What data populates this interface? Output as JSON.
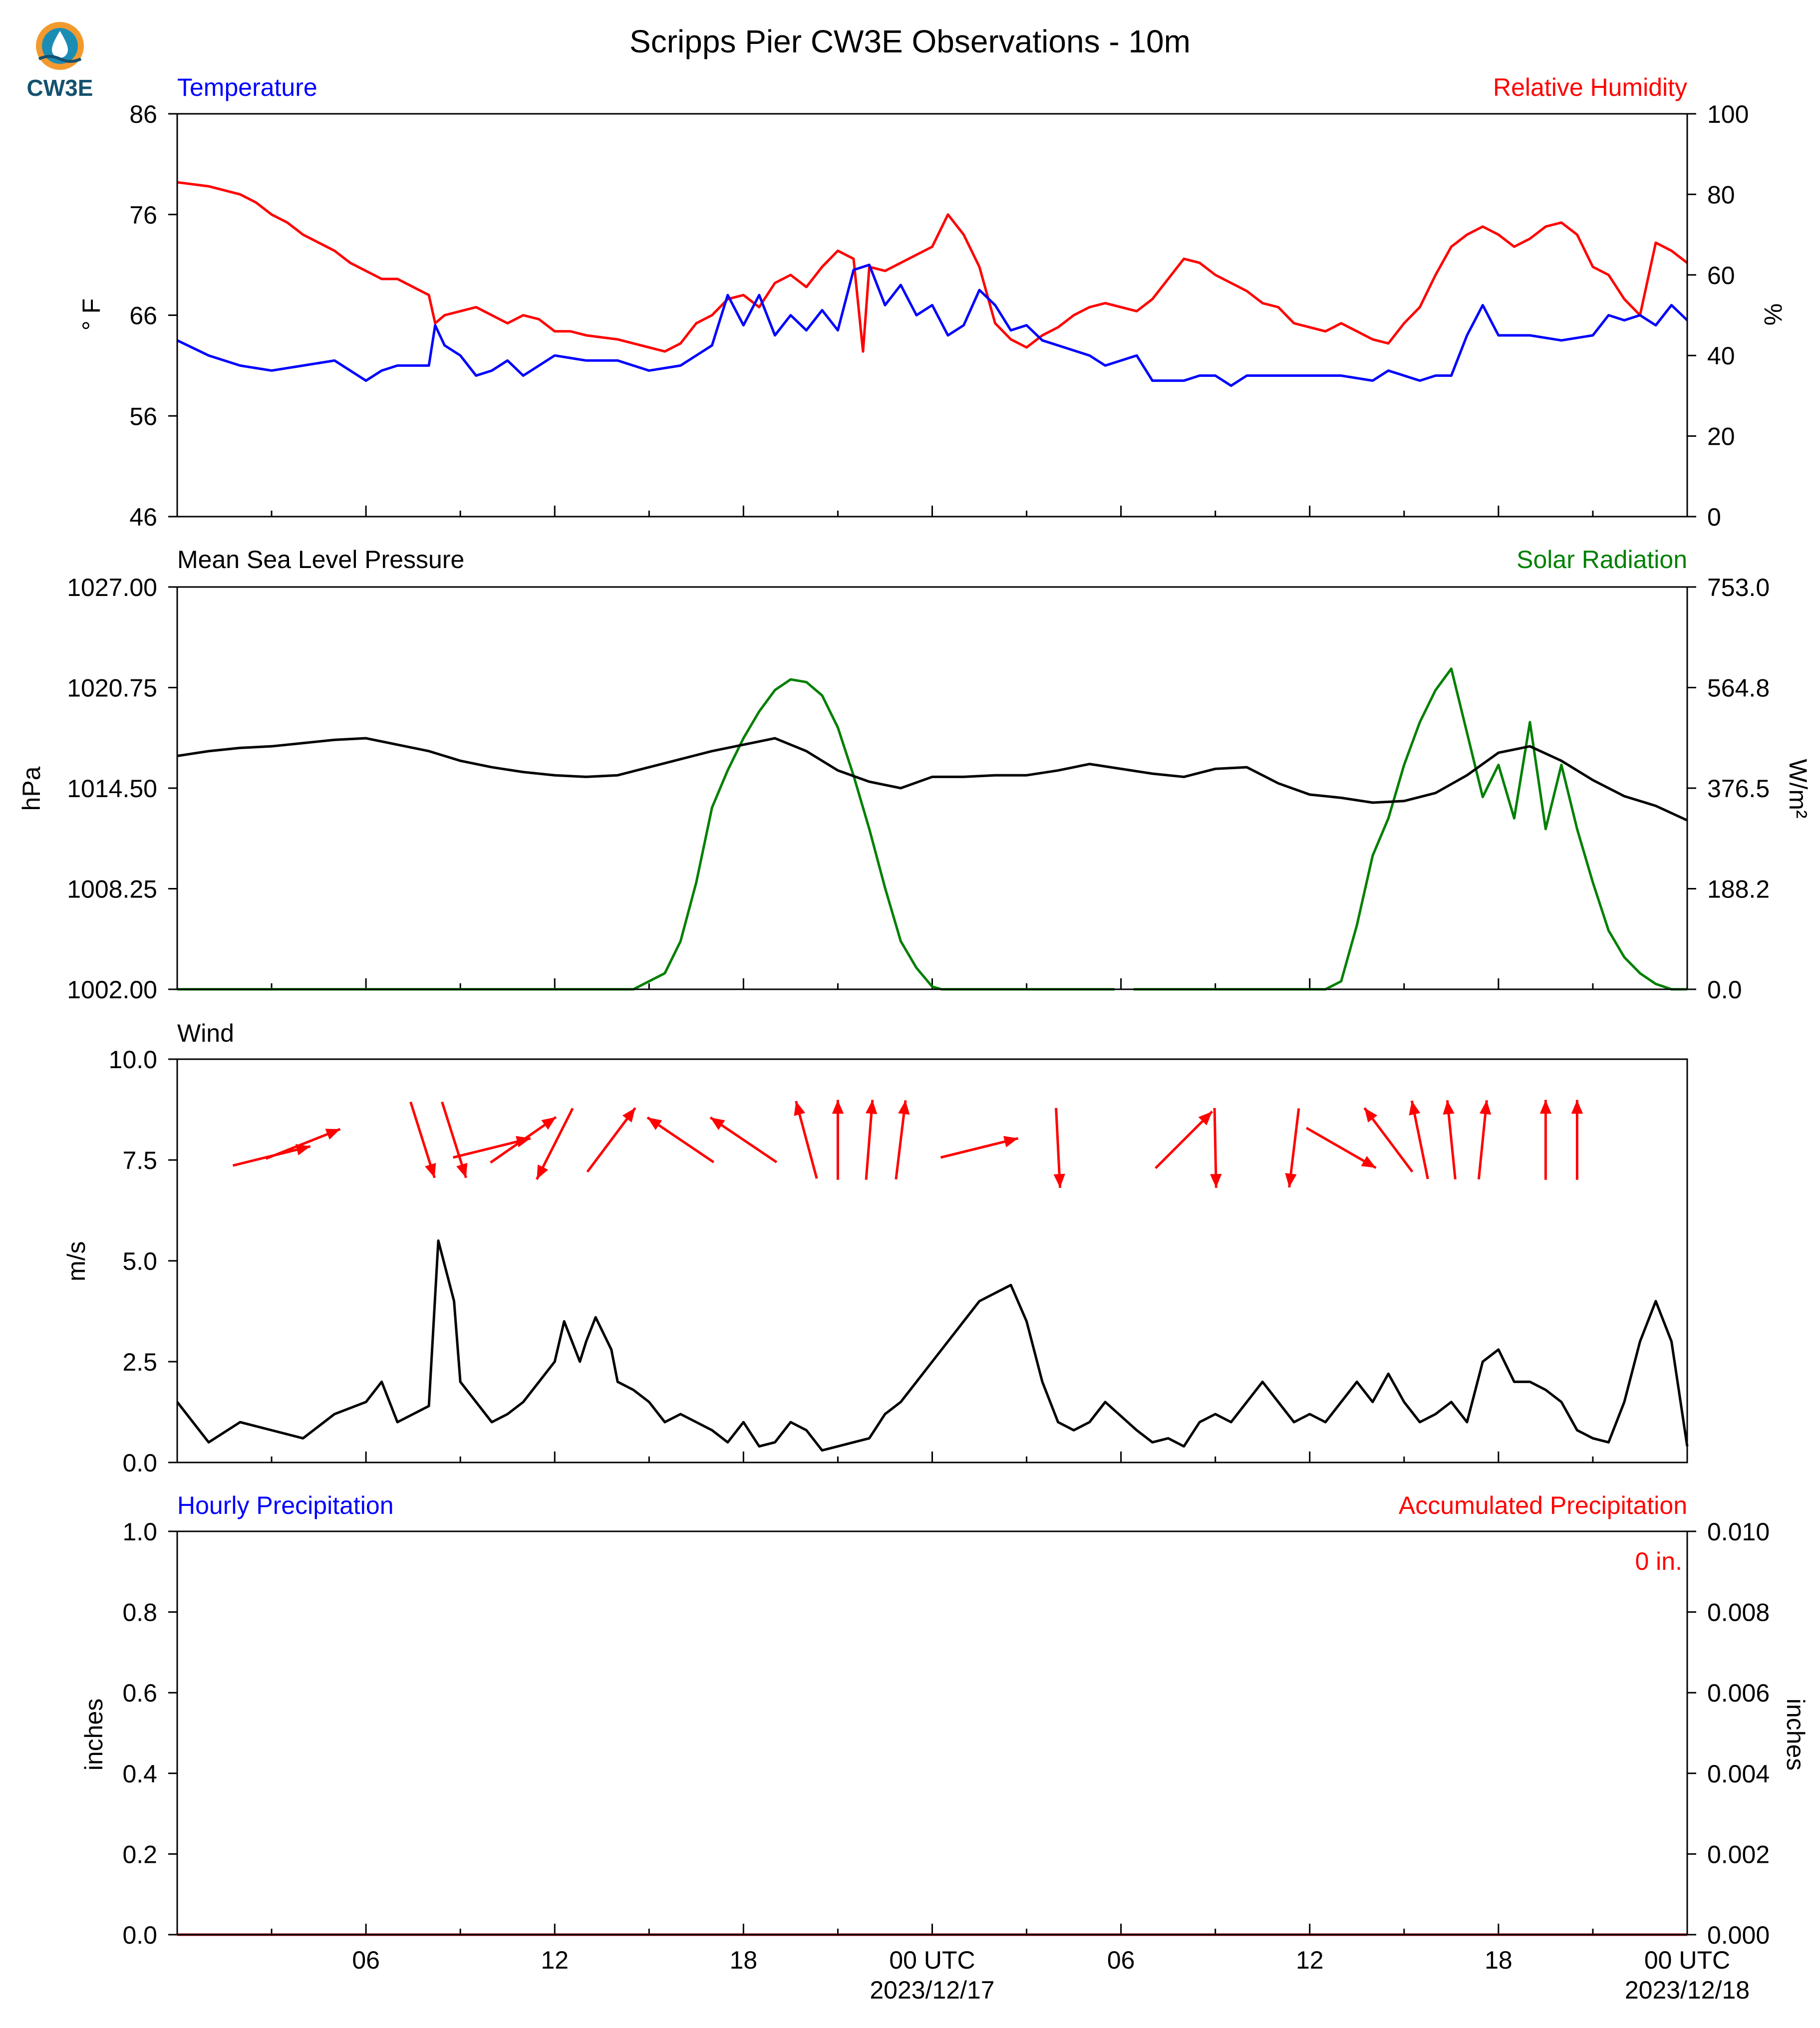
{
  "title": "Scripps Pier CW3E Observations - 10m",
  "logo": {
    "text": "CW3E",
    "icon": "cw3e-drop-logo",
    "colors": {
      "orange": "#F29A2E",
      "teal": "#1B8DB5",
      "navy": "#15516E"
    }
  },
  "colors": {
    "blue": "#0000FF",
    "red": "#FF0000",
    "green": "#008000",
    "black": "#000000"
  },
  "x_axis": {
    "range_hours": [
      -1,
      47
    ],
    "tick_labels": [
      {
        "hour": 5,
        "label": "06"
      },
      {
        "hour": 11,
        "label": "12"
      },
      {
        "hour": 17,
        "label": "18"
      },
      {
        "hour": 23,
        "label": "00 UTC",
        "sub": "2023/12/17"
      },
      {
        "hour": 29,
        "label": "06"
      },
      {
        "hour": 35,
        "label": "12"
      },
      {
        "hour": 41,
        "label": "18"
      },
      {
        "hour": 47,
        "label": "00 UTC",
        "sub": "2023/12/18"
      }
    ]
  },
  "panels": {
    "temp_rh": {
      "left_label": "Temperature",
      "right_label": "Relative Humidity",
      "left_unit": "° F",
      "right_unit": "%",
      "left_ticks": [
        "86",
        "76",
        "66",
        "56",
        "46"
      ],
      "right_ticks": [
        "100",
        "80",
        "60",
        "40",
        "20",
        "0"
      ]
    },
    "pressure_solar": {
      "left_label": "Mean Sea Level Pressure",
      "right_label": "Solar Radiation",
      "left_unit": "hPa",
      "right_unit": "W/m²",
      "left_ticks": [
        "1027.00",
        "1020.75",
        "1014.50",
        "1008.25",
        "1002.00"
      ],
      "right_ticks": [
        "753.0",
        "564.8",
        "376.5",
        "188.2",
        "0.0"
      ]
    },
    "wind": {
      "left_label": "Wind",
      "left_unit": "m/s",
      "left_ticks": [
        "10.0",
        "7.5",
        "5.0",
        "2.5",
        "0.0"
      ]
    },
    "precip": {
      "left_label": "Hourly Precipitation",
      "right_label": "Accumulated Precipitation",
      "left_unit": "inches",
      "right_unit": "inches",
      "left_ticks": [
        "1.0",
        "0.8",
        "0.6",
        "0.4",
        "0.2",
        "0.0"
      ],
      "right_ticks": [
        "0.010",
        "0.008",
        "0.006",
        "0.004",
        "0.002",
        "0.000"
      ],
      "accum_text": "0 in."
    }
  },
  "chart_data": [
    {
      "type": "line",
      "name": "temp_rh",
      "x_unit": "hours since 2023-12-16 00 UTC",
      "ylim_left": [
        46,
        86
      ],
      "ylim_right": [
        0,
        100
      ],
      "series": [
        {
          "name": "Temperature",
          "axis": "left",
          "color": "#0000FF",
          "x": [
            -1,
            0,
            1,
            2,
            3,
            4,
            5,
            5.5,
            6,
            7,
            7.2,
            7.5,
            8,
            8.5,
            9,
            9.5,
            10,
            10.5,
            11,
            12,
            13,
            14,
            15,
            15.5,
            16,
            16.5,
            17,
            17.5,
            18,
            18.5,
            19,
            19.5,
            20,
            20.5,
            21,
            21.5,
            22,
            22.5,
            23,
            23.5,
            24,
            24.5,
            25,
            25.5,
            26,
            26.5,
            27,
            28,
            28.5,
            29,
            29.5,
            30,
            31,
            31.5,
            32,
            32.5,
            33,
            34,
            35,
            36,
            37,
            37.5,
            38,
            38.5,
            39,
            39.5,
            40,
            40.5,
            41,
            42,
            43,
            44,
            44.5,
            45,
            45.5,
            46,
            46.5,
            47
          ],
          "y": [
            63.5,
            62,
            61,
            60.5,
            61,
            61.5,
            59.5,
            60.5,
            61,
            61,
            65,
            63,
            62,
            60,
            60.5,
            61.5,
            60,
            61,
            62,
            61.5,
            61.5,
            60.5,
            61,
            62,
            63,
            68,
            65,
            68,
            64,
            66,
            64.5,
            66.5,
            64.5,
            70.5,
            71,
            67,
            69,
            66,
            67,
            64,
            65,
            68.5,
            67,
            64.5,
            65,
            63.5,
            63,
            62,
            61,
            61,
            62,
            59.5,
            59.5,
            60,
            60,
            59,
            60,
            60,
            60,
            60,
            59.5,
            60.5,
            60,
            59.5,
            60,
            60,
            64,
            67,
            64,
            64,
            63.5,
            64,
            66,
            65.5,
            66,
            65,
            67,
            65.5
          ]
        },
        {
          "name": "Relative Humidity",
          "axis": "right",
          "color": "#FF0000",
          "x": [
            -1,
            0,
            0.5,
            1,
            1.5,
            2,
            2.5,
            3,
            3.5,
            4,
            4.5,
            5,
            5.5,
            6,
            6.5,
            7,
            7.2,
            7.5,
            8,
            8.5,
            9,
            9.5,
            10,
            10.5,
            11,
            11.5,
            12,
            13,
            14,
            14.5,
            15,
            15.5,
            16,
            16.5,
            17,
            17.5,
            18,
            18.5,
            19,
            19.5,
            20,
            20.5,
            20.8,
            21,
            21.5,
            22,
            22.5,
            23,
            23.5,
            24,
            24.5,
            25,
            25.5,
            26,
            26.5,
            27,
            27.5,
            28,
            28.5,
            29,
            29.5,
            30,
            31,
            31.5,
            32,
            32.5,
            33,
            33.5,
            34,
            34.5,
            35,
            35.5,
            36,
            36.5,
            37,
            37.5,
            38,
            38.5,
            39,
            39.5,
            40,
            40.5,
            41,
            41.5,
            42,
            42.5,
            43,
            43.5,
            44,
            44.5,
            45,
            45.5,
            46,
            46.5,
            47
          ],
          "y": [
            83,
            82,
            81,
            80,
            78,
            75,
            73,
            70,
            68,
            66,
            63,
            61,
            59,
            59,
            57,
            55,
            48,
            50,
            51,
            52,
            50,
            48,
            50,
            49,
            46,
            46,
            45,
            44,
            42,
            41,
            43,
            48,
            50,
            54,
            55,
            52,
            58,
            60,
            57,
            62,
            66,
            64,
            41,
            62,
            61,
            63,
            65,
            67,
            75,
            70,
            62,
            48,
            44,
            42,
            45,
            47,
            50,
            52,
            53,
            49,
            51,
            54,
            64,
            63,
            60,
            58,
            56,
            53,
            52,
            48,
            47,
            46,
            48,
            46,
            44,
            43,
            48,
            52,
            60,
            67,
            70,
            72,
            70,
            67,
            69,
            72,
            73,
            70,
            62,
            60,
            54,
            50,
            68,
            66,
            63
          ]
        }
      ],
      "gap_hours": [
        28.8,
        29.4
      ]
    },
    {
      "type": "line",
      "name": "pressure_solar",
      "x_unit": "hours since 2023-12-16 00 UTC",
      "ylim_left": [
        1002.0,
        1027.0
      ],
      "ylim_right": [
        0.0,
        753.0
      ],
      "series": [
        {
          "name": "Mean Sea Level Pressure",
          "axis": "left",
          "color": "#000000",
          "x": [
            -1,
            0,
            1,
            2,
            3,
            4,
            5,
            6,
            7,
            8,
            9,
            10,
            11,
            12,
            13,
            14,
            15,
            16,
            17,
            18,
            19,
            20,
            21,
            22,
            23,
            24,
            25,
            26,
            27,
            28,
            29,
            30,
            31,
            32,
            33,
            34,
            35,
            36,
            37,
            38,
            39,
            40,
            41,
            42,
            43,
            44,
            45,
            46,
            47
          ],
          "y": [
            1016.5,
            1016.8,
            1017.0,
            1017.1,
            1017.3,
            1017.5,
            1017.6,
            1017.2,
            1016.8,
            1016.2,
            1015.8,
            1015.5,
            1015.3,
            1015.2,
            1015.3,
            1015.8,
            1016.3,
            1016.8,
            1017.2,
            1017.6,
            1016.8,
            1015.6,
            1014.9,
            1014.5,
            1015.2,
            1015.2,
            1015.3,
            1015.3,
            1015.6,
            1016.0,
            1015.6,
            1015.4,
            1015.2,
            1015.7,
            1015.8,
            1014.8,
            1014.1,
            1013.9,
            1013.6,
            1013.7,
            1014.2,
            1015.3,
            1016.7,
            1017.1,
            1016.2,
            1015.0,
            1014.0,
            1013.4,
            1012.5
          ]
        },
        {
          "name": "Solar Radiation",
          "axis": "right",
          "color": "#008000",
          "x": [
            -1,
            12,
            13.5,
            14.5,
            15,
            15.5,
            16,
            16.5,
            17,
            17.5,
            18,
            18.5,
            19,
            19.5,
            20,
            20.5,
            21,
            21.5,
            22,
            22.5,
            23,
            23.3,
            23.8,
            25,
            28,
            28.8,
            29.4,
            34,
            35.5,
            36,
            36.5,
            37,
            37.5,
            38,
            38.5,
            39,
            39.5,
            40,
            40.5,
            41,
            41.5,
            42,
            42.5,
            43,
            43.5,
            44,
            44.5,
            45,
            45.5,
            46,
            46.5,
            47
          ],
          "y": [
            0,
            0,
            0,
            30,
            90,
            200,
            340,
            410,
            470,
            520,
            560,
            580,
            575,
            550,
            490,
            400,
            300,
            190,
            90,
            40,
            5,
            0,
            0,
            0,
            0,
            0,
            0,
            0,
            0,
            15,
            120,
            250,
            320,
            420,
            500,
            560,
            600,
            480,
            360,
            420,
            320,
            500,
            300,
            420,
            300,
            200,
            110,
            60,
            30,
            10,
            0,
            0
          ]
        }
      ],
      "gap_hours": [
        28.8,
        29.4
      ]
    },
    {
      "type": "line",
      "name": "wind",
      "x_unit": "hours since 2023-12-16 00 UTC",
      "ylim": [
        0.0,
        10.0
      ],
      "series": [
        {
          "name": "Wind",
          "color": "#000000",
          "x": [
            -1,
            0,
            1,
            2,
            3,
            4,
            5,
            5.5,
            6,
            6.5,
            7,
            7.3,
            7.8,
            8,
            8.5,
            9,
            9.5,
            10,
            10.5,
            11,
            11.3,
            11.8,
            12,
            12.3,
            12.8,
            13,
            13.5,
            14,
            14.5,
            15,
            15.5,
            16,
            16.5,
            17,
            17.5,
            18,
            18.5,
            19,
            19.5,
            20,
            20.5,
            21,
            21.5,
            22,
            22.5,
            23,
            23.5,
            24,
            24.5,
            25,
            25.5,
            26,
            26.5,
            27,
            27.5,
            28,
            28.5,
            29,
            29.5,
            30,
            30.5,
            31,
            31.5,
            32,
            32.5,
            33,
            33.5,
            34,
            34.5,
            35,
            35.5,
            36,
            36.5,
            37,
            37.5,
            38,
            38.5,
            39,
            39.5,
            40,
            40.5,
            41,
            41.5,
            42,
            42.5,
            43,
            43.5,
            44,
            44.5,
            45,
            45.5,
            46,
            46.5,
            47
          ],
          "y": [
            1.5,
            0.5,
            1.0,
            0.8,
            0.6,
            1.2,
            1.5,
            2.0,
            1.0,
            1.2,
            1.4,
            5.5,
            4.0,
            2.0,
            1.5,
            1.0,
            1.2,
            1.5,
            2.0,
            2.5,
            3.5,
            2.5,
            3.0,
            3.6,
            2.8,
            2.0,
            1.8,
            1.5,
            1.0,
            1.2,
            1.0,
            0.8,
            0.5,
            1.0,
            0.4,
            0.5,
            1.0,
            0.8,
            0.3,
            0.4,
            0.5,
            0.6,
            1.2,
            1.5,
            2.0,
            2.5,
            3.0,
            3.5,
            4.0,
            4.2,
            4.4,
            3.5,
            2.0,
            1.0,
            0.8,
            1.0,
            1.5,
            1.0,
            0.8,
            0.5,
            0.6,
            0.4,
            1.0,
            1.2,
            1.0,
            1.5,
            2.0,
            1.5,
            1.0,
            1.2,
            1.0,
            1.5,
            2.0,
            1.5,
            2.2,
            1.5,
            1.0,
            1.2,
            1.5,
            1.0,
            2.5,
            2.8,
            2.0,
            2.0,
            1.8,
            1.5,
            0.8,
            0.6,
            0.5,
            1.5,
            3.0,
            4.0,
            3.0,
            0.4
          ]
        }
      ],
      "gap_hours": [
        28.8,
        29.4
      ]
    },
    {
      "type": "line",
      "name": "precip",
      "x_unit": "hours since 2023-12-16 00 UTC",
      "ylim_left": [
        0.0,
        1.0
      ],
      "ylim_right": [
        0.0,
        0.01
      ],
      "series": [
        {
          "name": "Hourly Precipitation",
          "axis": "left",
          "color": "#0000FF",
          "x": [
            -1,
            47
          ],
          "y": [
            0,
            0
          ]
        },
        {
          "name": "Accumulated Precipitation",
          "axis": "right",
          "color": "#FF0000",
          "x": [
            -1,
            47
          ],
          "y": [
            0,
            0
          ]
        }
      ]
    }
  ],
  "wind_barbs": {
    "color": "#FF0000",
    "arrows": [
      {
        "hour": 2,
        "speed": 7.6,
        "dx": 0.97,
        "dy": 0.24
      },
      {
        "hour": 3,
        "speed": 7.9,
        "dx": 0.93,
        "dy": 0.37
      },
      {
        "hour": 6.8,
        "speed": 8.0,
        "dx": 0.3,
        "dy": -0.95
      },
      {
        "hour": 7.8,
        "speed": 8.0,
        "dx": 0.3,
        "dy": -0.95
      },
      {
        "hour": 9,
        "speed": 7.8,
        "dx": 0.97,
        "dy": 0.24
      },
      {
        "hour": 10,
        "speed": 8.0,
        "dx": 0.82,
        "dy": 0.57
      },
      {
        "hour": 11,
        "speed": 7.9,
        "dx": -0.45,
        "dy": -0.89
      },
      {
        "hour": 12.8,
        "speed": 8.0,
        "dx": 0.6,
        "dy": 0.8
      },
      {
        "hour": 15,
        "speed": 8.0,
        "dx": -0.83,
        "dy": 0.56
      },
      {
        "hour": 17,
        "speed": 8.0,
        "dx": -0.83,
        "dy": 0.56
      },
      {
        "hour": 19,
        "speed": 8.0,
        "dx": -0.26,
        "dy": 0.97
      },
      {
        "hour": 20,
        "speed": 8.0,
        "dx": 0.0,
        "dy": 1.0
      },
      {
        "hour": 21,
        "speed": 8.0,
        "dx": 0.08,
        "dy": 1.0
      },
      {
        "hour": 22,
        "speed": 8.0,
        "dx": 0.12,
        "dy": 0.99
      },
      {
        "hour": 24.5,
        "speed": 7.8,
        "dx": 0.97,
        "dy": 0.24
      },
      {
        "hour": 27,
        "speed": 7.8,
        "dx": 0.05,
        "dy": -1.0
      },
      {
        "hour": 31,
        "speed": 8.0,
        "dx": 0.71,
        "dy": 0.71
      },
      {
        "hour": 32,
        "speed": 7.8,
        "dx": 0.02,
        "dy": -1.0
      },
      {
        "hour": 34.5,
        "speed": 7.8,
        "dx": -0.12,
        "dy": -0.99
      },
      {
        "hour": 36,
        "speed": 7.8,
        "dx": 0.87,
        "dy": -0.5
      },
      {
        "hour": 37.5,
        "speed": 8.0,
        "dx": -0.6,
        "dy": 0.8
      },
      {
        "hour": 38.5,
        "speed": 8.0,
        "dx": -0.2,
        "dy": 0.98
      },
      {
        "hour": 39.5,
        "speed": 8.0,
        "dx": -0.1,
        "dy": 0.99
      },
      {
        "hour": 40.5,
        "speed": 8.0,
        "dx": 0.1,
        "dy": 0.99
      },
      {
        "hour": 42.5,
        "speed": 8.0,
        "dx": 0.0,
        "dy": 1.0
      },
      {
        "hour": 43.5,
        "speed": 8.0,
        "dx": 0.0,
        "dy": 1.0
      }
    ]
  }
}
